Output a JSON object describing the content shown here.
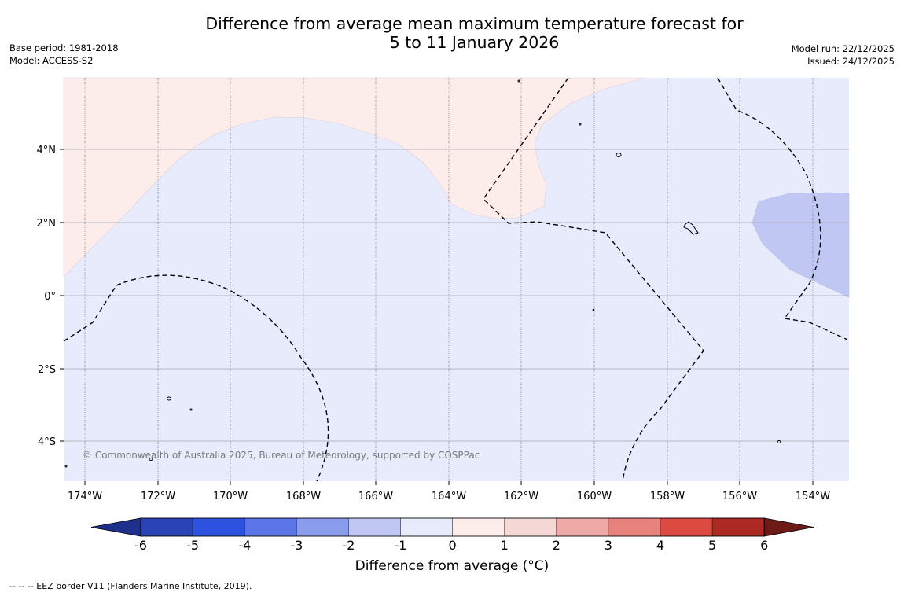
{
  "title_line1": "Difference from average mean maximum temperature forecast for",
  "title_line2": "5 to 11 January 2026",
  "base_period": "Base period: 1981-2018",
  "model": "Model: ACCESS-S2",
  "model_run": "Model run: 22/12/2025",
  "issued": "Issued: 24/12/2025",
  "copyright": "© Commonwealth of Australia 2025, Bureau of Meteorology, supported by COSPPac",
  "lat_labels": [
    "4°N",
    "2°N",
    "0°",
    "2°S",
    "4°S"
  ],
  "lon_labels": [
    "174°W",
    "172°W",
    "170°W",
    "168°W",
    "166°W",
    "164°W",
    "162°W",
    "160°W",
    "158°W",
    "156°W",
    "154°W"
  ],
  "colorbar": {
    "label": "Difference from average (°C)",
    "ticks": [
      "-6",
      "-5",
      "-4",
      "-3",
      "-2",
      "-1",
      "0",
      "1",
      "2",
      "3",
      "4",
      "5",
      "6"
    ],
    "colors": [
      "#1f2f8c",
      "#2a44b5",
      "#2e52e0",
      "#5b75e6",
      "#8a9cec",
      "#c1c7f3",
      "#e8ebfb",
      "#fcecea",
      "#f5d8d6",
      "#eeaaa6",
      "#e8827c",
      "#dc4a42",
      "#ad2a24",
      "#6e1a16"
    ]
  },
  "footnote": "--  --  -- EEZ border V11 (Flanders Marine Institute, 2019)."
}
